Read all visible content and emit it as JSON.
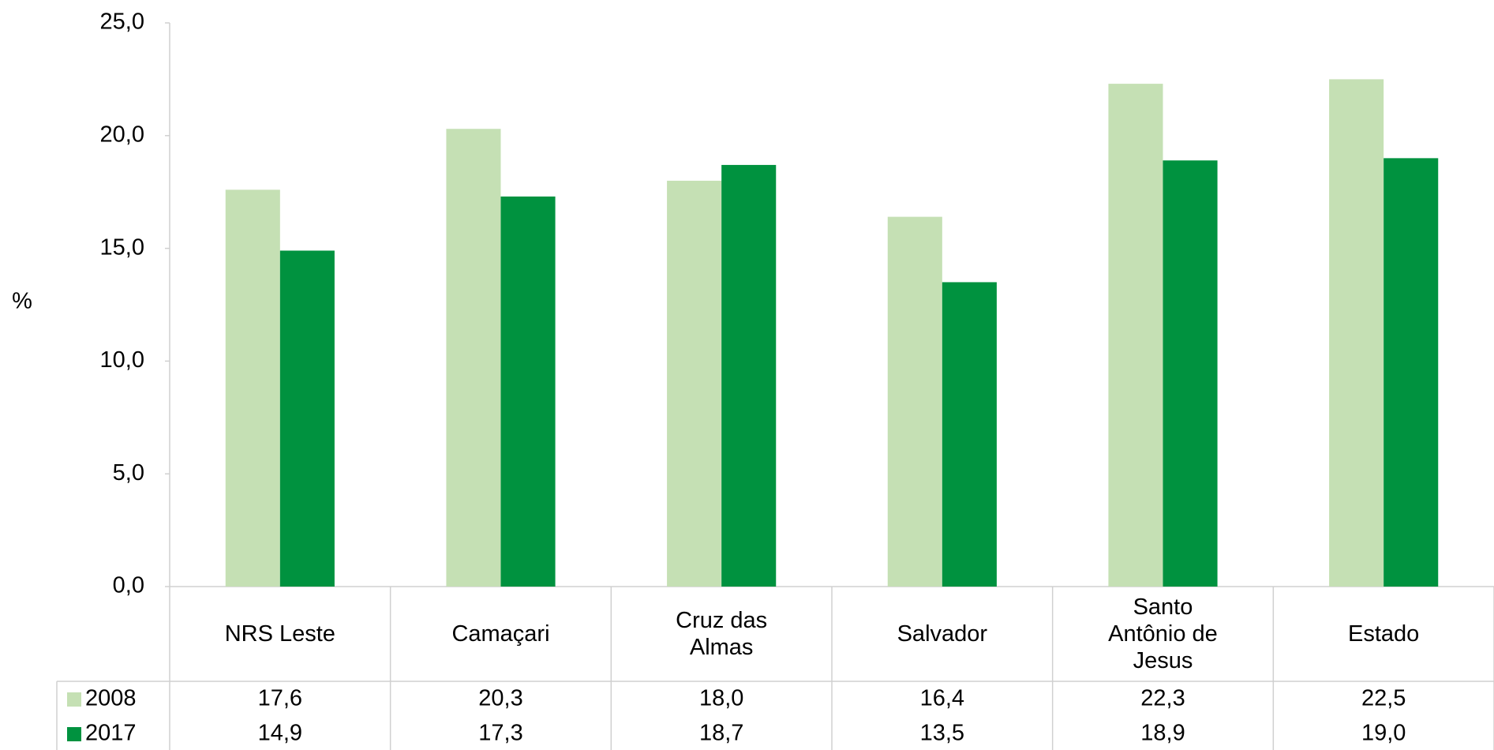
{
  "chart_data": {
    "type": "bar",
    "y_label": "%",
    "categories": [
      "NRS Leste",
      "Camaçari",
      "Cruz das Almas",
      "Salvador",
      "Santo Antônio de Jesus",
      "Estado"
    ],
    "series": [
      {
        "name": "2008",
        "color": "#c5e0b4",
        "values": [
          17.6,
          20.3,
          18.0,
          16.4,
          22.3,
          22.5
        ],
        "value_labels": [
          "17,6",
          "20,3",
          "18,0",
          "16,4",
          "22,3",
          "22,5"
        ]
      },
      {
        "name": "2017",
        "color": "#00923f",
        "values": [
          14.9,
          17.3,
          18.7,
          13.5,
          18.9,
          19.0
        ],
        "value_labels": [
          "14,9",
          "17,3",
          "18,7",
          "13,5",
          "18,9",
          "19,0"
        ]
      }
    ],
    "ylim": [
      0,
      25
    ],
    "yticks": [
      {
        "value": 0,
        "label": "0,0"
      },
      {
        "value": 5,
        "label": "5,0"
      },
      {
        "value": 10,
        "label": "10,0"
      },
      {
        "value": 15,
        "label": "15,0"
      },
      {
        "value": 20,
        "label": "20,0"
      },
      {
        "value": 25,
        "label": "25,0"
      }
    ],
    "grid": false
  }
}
